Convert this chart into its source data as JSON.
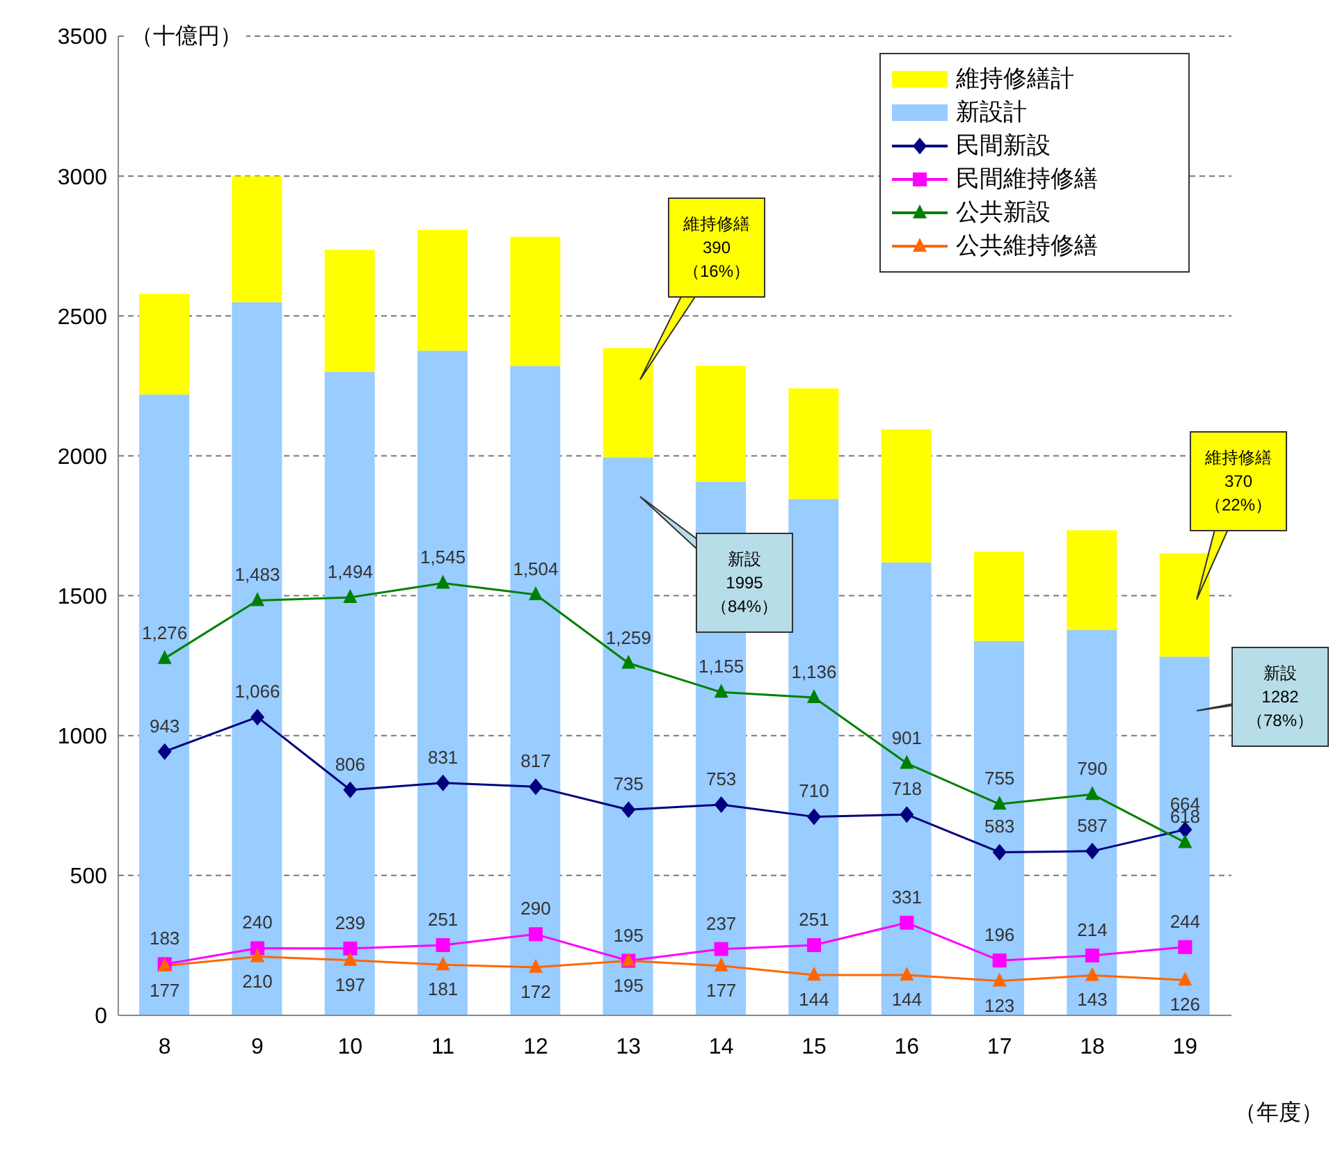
{
  "chart_data": {
    "type": "bar",
    "stacked": true,
    "ylabel": "（十億円）",
    "xlabel": "（年度）",
    "categories": [
      "8",
      "9",
      "10",
      "11",
      "12",
      "13",
      "14",
      "15",
      "16",
      "17",
      "18",
      "19"
    ],
    "ylim": [
      0,
      3500
    ],
    "yticks": [
      0,
      500,
      1000,
      1500,
      2000,
      2500,
      3000,
      3500
    ],
    "grid": "y",
    "legend": "top right",
    "series": [
      {
        "name": "新設計",
        "color": "#99ccff",
        "values": [
          2219,
          2549,
          2300,
          2376,
          2321,
          1995,
          1908,
          1846,
          1619,
          1338,
          1377,
          1282
        ]
      },
      {
        "name": "維持修繕計",
        "color": "#ffff00",
        "values": [
          360,
          450,
          436,
          432,
          462,
          390,
          414,
          395,
          475,
          319,
          357,
          370
        ]
      },
      {
        "name": "民間新設",
        "type": "line",
        "color": "#000080",
        "marker": "diamond",
        "values": [
          943,
          1066,
          806,
          831,
          817,
          735,
          753,
          710,
          718,
          583,
          587,
          664
        ],
        "value_labels": [
          "943",
          "1,066",
          "806",
          "831",
          "817",
          "735",
          "753",
          "710",
          "718",
          "583",
          "587",
          "664"
        ]
      },
      {
        "name": "民間維持修繕",
        "type": "line",
        "color": "#ff00ff",
        "marker": "square",
        "values": [
          183,
          240,
          239,
          251,
          290,
          195,
          237,
          251,
          331,
          196,
          214,
          244
        ],
        "value_labels": [
          "183",
          "240",
          "239",
          "251",
          "290",
          "195",
          "237",
          "251",
          "331",
          "196",
          "214",
          "244"
        ]
      },
      {
        "name": "公共新設",
        "type": "line",
        "color": "#008000",
        "marker": "triangle",
        "values": [
          1276,
          1483,
          1494,
          1545,
          1504,
          1259,
          1155,
          1136,
          901,
          755,
          790,
          618
        ],
        "value_labels": [
          "1,276",
          "1,483",
          "1,494",
          "1,545",
          "1,504",
          "1,259",
          "1,155",
          "1,136",
          "901",
          "755",
          "790",
          "618"
        ]
      },
      {
        "name": "公共維持修繕",
        "type": "line",
        "color": "#ff6600",
        "marker": "triangle",
        "values": [
          177,
          210,
          197,
          181,
          172,
          195,
          177,
          144,
          144,
          123,
          143,
          126
        ],
        "value_labels": [
          "177",
          "210",
          "197",
          "181",
          "172",
          "195",
          "177",
          "144",
          "144",
          "123",
          "143",
          "126"
        ]
      }
    ],
    "annotations": [
      "維持修繕\n390\n（16%）",
      "新設\n1995\n（84%）",
      "維持修繕\n370\n（22%）",
      "新設\n1282\n（78%）"
    ]
  }
}
